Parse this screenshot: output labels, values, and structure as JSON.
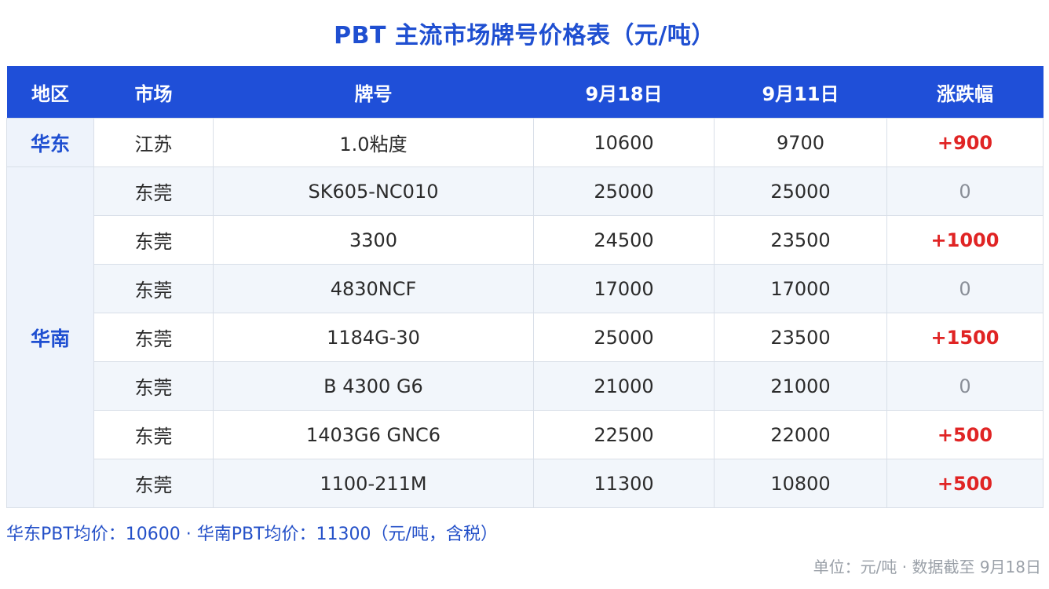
{
  "title": "PBT 主流市场牌号价格表（元/吨）",
  "colors": {
    "title": "#1f4fd1",
    "header_bg": "#1f4fd8",
    "up": "#e02424",
    "flat": "#8a8f98",
    "region": "#1f4fd1"
  },
  "table": {
    "headers": [
      "地区",
      "市场",
      "牌号",
      "9月18日",
      "9月11日",
      "涨跌幅"
    ],
    "regions": [
      {
        "name": "华东",
        "rows": [
          {
            "market": "江苏",
            "brand": "1.0粘度",
            "price_current": "10600",
            "price_prev": "9700",
            "change": "+900"
          }
        ]
      },
      {
        "name": "华南",
        "rows": [
          {
            "market": "东莞",
            "brand": "SK605-NC010",
            "price_current": "25000",
            "price_prev": "25000",
            "change": "0"
          },
          {
            "market": "东莞",
            "brand": "3300",
            "price_current": "24500",
            "price_prev": "23500",
            "change": "+1000"
          },
          {
            "market": "东莞",
            "brand": "4830NCF",
            "price_current": "17000",
            "price_prev": "17000",
            "change": "0"
          },
          {
            "market": "东莞",
            "brand": "1184G-30",
            "price_current": "25000",
            "price_prev": "23500",
            "change": "+1500"
          },
          {
            "market": "东莞",
            "brand": "B 4300 G6",
            "price_current": "21000",
            "price_prev": "21000",
            "change": "0"
          },
          {
            "market": "东莞",
            "brand": "1403G6 GNC6",
            "price_current": "22500",
            "price_prev": "22000",
            "change": "+500"
          },
          {
            "market": "东莞",
            "brand": "1100-211M",
            "price_current": "11300",
            "price_prev": "10800",
            "change": "+500"
          }
        ]
      }
    ]
  },
  "footnote": "华东PBT均价：10600 · 华南PBT均价：11300（元/吨，含税）",
  "source": "单位：元/吨 · 数据截至 9月18日"
}
